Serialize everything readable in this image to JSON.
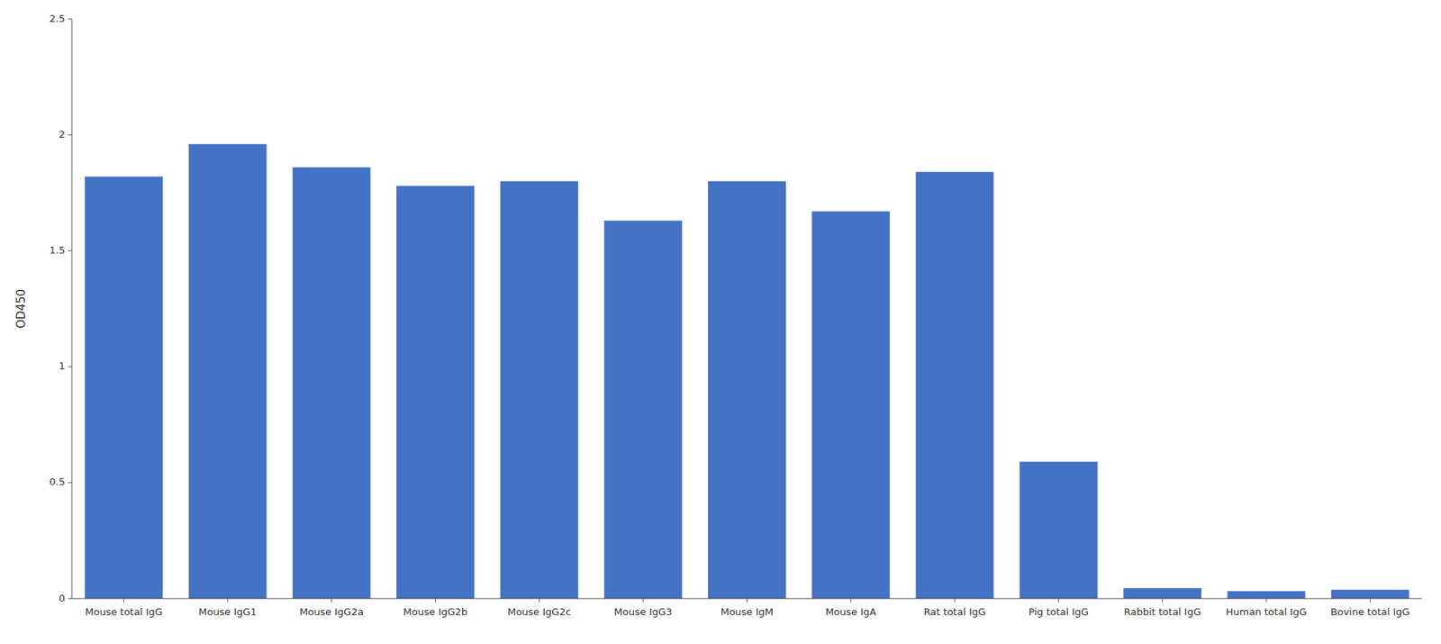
{
  "chart_data": {
    "type": "bar",
    "ylabel": "OD450",
    "categories": [
      "Mouse total IgG",
      "Mouse IgG1",
      "Mouse IgG2a",
      "Mouse IgG2b",
      "Mouse IgG2c",
      "Mouse IgG3",
      "Mouse IgM",
      "Mouse IgA",
      "Rat total IgG",
      "Pig total IgG",
      "Rabbit total IgG",
      "Human total IgG",
      "Bovine total IgG"
    ],
    "values": [
      1.82,
      1.96,
      1.86,
      1.78,
      1.8,
      1.63,
      1.8,
      1.67,
      1.84,
      0.59,
      0.045,
      0.032,
      0.038
    ],
    "color": "#4472C4",
    "ylim": [
      0,
      2.5
    ],
    "yticks": [
      0,
      0.5,
      1.0,
      1.5,
      2.0,
      2.5
    ],
    "grid": false
  }
}
